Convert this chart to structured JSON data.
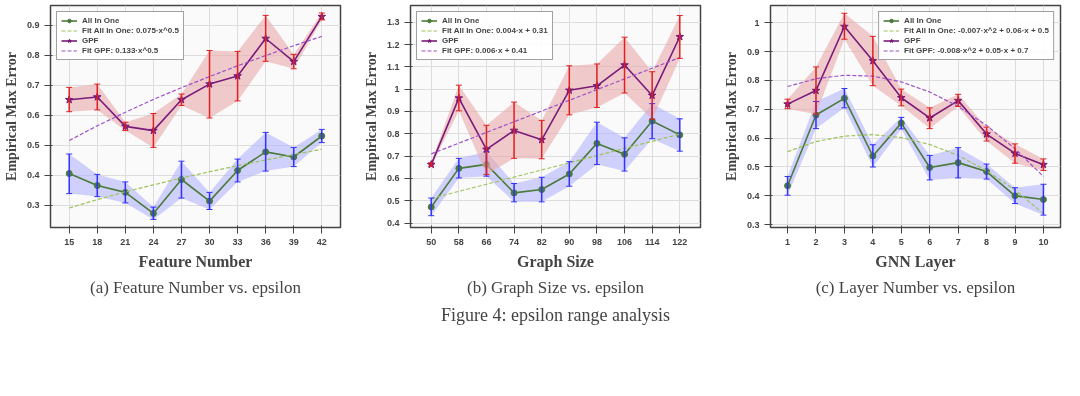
{
  "chart_data": [
    {
      "type": "line",
      "xlabel": "Feature Number",
      "ylabel": "Empirical Max Error",
      "x": [
        15,
        18,
        21,
        24,
        27,
        30,
        33,
        36,
        39,
        42
      ],
      "xlim": [
        13,
        44
      ],
      "xticks": [
        15,
        18,
        21,
        24,
        27,
        30,
        33,
        36,
        39,
        42
      ],
      "ylim": [
        0.225,
        0.965
      ],
      "yticks": [
        0.3,
        0.4,
        0.5,
        0.6,
        0.7,
        0.8,
        0.9
      ],
      "grid": true,
      "legend": "top left",
      "series": [
        {
          "name": "All In One",
          "color": "#4a7a3a",
          "marker": "circle",
          "line_style": "solid",
          "values": [
            0.405,
            0.365,
            0.342,
            0.272,
            0.385,
            0.313,
            0.415,
            0.477,
            0.46,
            0.53
          ],
          "errors": [
            [
              0.338,
              0.47
            ],
            [
              0.328,
              0.402
            ],
            [
              0.307,
              0.377
            ],
            [
              0.252,
              0.293
            ],
            [
              0.323,
              0.446
            ],
            [
              0.285,
              0.342
            ],
            [
              0.377,
              0.453
            ],
            [
              0.413,
              0.542
            ],
            [
              0.428,
              0.492
            ],
            [
              0.508,
              0.552
            ]
          ],
          "lower": [
            0.338,
            0.328,
            0.307,
            0.252,
            0.323,
            0.285,
            0.377,
            0.413,
            0.428,
            0.508
          ],
          "upper": [
            0.47,
            0.402,
            0.377,
            0.293,
            0.446,
            0.342,
            0.453,
            0.542,
            0.492,
            0.552
          ]
        },
        {
          "name": "Fit All In One: 0.075·x^0.5",
          "color": "#9cc45a",
          "marker": "none",
          "line_style": "dashed",
          "values": [
            0.29,
            0.318,
            0.344,
            0.367,
            0.39,
            0.411,
            0.431,
            0.45,
            0.468,
            0.486
          ]
        },
        {
          "name": "GPF",
          "color": "#7a1a7a",
          "marker": "star",
          "line_style": "solid",
          "values": [
            0.651,
            0.66,
            0.562,
            0.548,
            0.651,
            0.703,
            0.73,
            0.855,
            0.778,
            0.928
          ],
          "errors": [
            [
              0.611,
              0.692
            ],
            [
              0.617,
              0.703
            ],
            [
              0.548,
              0.576
            ],
            [
              0.492,
              0.605
            ],
            [
              0.632,
              0.67
            ],
            [
              0.59,
              0.815
            ],
            [
              0.647,
              0.812
            ],
            [
              0.779,
              0.932
            ],
            [
              0.754,
              0.802
            ],
            [
              0.917,
              0.94
            ]
          ],
          "lower": [
            0.611,
            0.617,
            0.548,
            0.492,
            0.632,
            0.59,
            0.647,
            0.779,
            0.754,
            0.917
          ],
          "upper": [
            0.692,
            0.703,
            0.576,
            0.605,
            0.67,
            0.815,
            0.812,
            0.932,
            0.802,
            0.94
          ]
        },
        {
          "name": "Fit GPF: 0.133·x^0.5",
          "color": "#a050c8",
          "marker": "none",
          "line_style": "dashed",
          "values": [
            0.515,
            0.564,
            0.609,
            0.652,
            0.691,
            0.728,
            0.764,
            0.798,
            0.831,
            0.862
          ]
        }
      ],
      "annotations": [
        "(a) Feature Number vs. epsilon"
      ]
    },
    {
      "type": "line",
      "xlabel": "Graph Size",
      "ylabel": "Empirical Max Error",
      "x": [
        50,
        58,
        66,
        74,
        82,
        90,
        98,
        106,
        114,
        122
      ],
      "xlim": [
        44,
        128
      ],
      "xticks": [
        50,
        58,
        66,
        74,
        82,
        90,
        98,
        106,
        114,
        122
      ],
      "ylim": [
        0.38,
        1.375
      ],
      "yticks": [
        0.4,
        0.5,
        0.6,
        0.7,
        0.8,
        0.9,
        1,
        1.1,
        1.2,
        1.3
      ],
      "grid": true,
      "legend": "top left",
      "series": [
        {
          "name": "All In One",
          "color": "#4a7a3a",
          "marker": "circle",
          "line_style": "solid",
          "values": [
            0.472,
            0.645,
            0.663,
            0.535,
            0.55,
            0.62,
            0.757,
            0.708,
            0.857,
            0.795
          ],
          "errors": [
            [
              0.433,
              0.512
            ],
            [
              0.602,
              0.69
            ],
            [
              0.61,
              0.72
            ],
            [
              0.495,
              0.577
            ],
            [
              0.495,
              0.605
            ],
            [
              0.565,
              0.675
            ],
            [
              0.662,
              0.852
            ],
            [
              0.633,
              0.782
            ],
            [
              0.778,
              0.935
            ],
            [
              0.722,
              0.867
            ]
          ],
          "lower": [
            0.433,
            0.602,
            0.61,
            0.495,
            0.495,
            0.565,
            0.662,
            0.633,
            0.778,
            0.722
          ],
          "upper": [
            0.512,
            0.69,
            0.72,
            0.577,
            0.605,
            0.675,
            0.852,
            0.782,
            0.935,
            0.867
          ]
        },
        {
          "name": "Fit All In One: 0.004·x + 0.31",
          "color": "#9cc45a",
          "marker": "none",
          "line_style": "dashed",
          "values": [
            0.51,
            0.542,
            0.574,
            0.606,
            0.638,
            0.67,
            0.702,
            0.734,
            0.766,
            0.798
          ]
        },
        {
          "name": "GPF",
          "color": "#7a1a7a",
          "marker": "star",
          "line_style": "solid",
          "values": [
            0.662,
            0.96,
            0.73,
            0.815,
            0.773,
            0.995,
            1.015,
            1.108,
            0.972,
            1.235
          ],
          "errors": [
            [
              0.655,
              0.67
            ],
            [
              0.903,
              1.018
            ],
            [
              0.618,
              0.838
            ],
            [
              0.69,
              0.942
            ],
            [
              0.688,
              0.86
            ],
            [
              0.885,
              1.105
            ],
            [
              0.918,
              1.113
            ],
            [
              0.983,
              1.233
            ],
            [
              0.865,
              1.078
            ],
            [
              1.138,
              1.33
            ]
          ],
          "lower": [
            0.655,
            0.903,
            0.618,
            0.69,
            0.688,
            0.885,
            0.918,
            0.983,
            0.865,
            1.138
          ],
          "upper": [
            0.67,
            1.018,
            0.838,
            0.942,
            0.86,
            1.105,
            1.113,
            1.233,
            1.078,
            1.33
          ]
        },
        {
          "name": "Fit GPF: 0.006·x + 0.41",
          "color": "#a050c8",
          "marker": "none",
          "line_style": "dashed",
          "values": [
            0.71,
            0.758,
            0.806,
            0.854,
            0.902,
            0.95,
            0.998,
            1.046,
            1.094,
            1.142
          ]
        }
      ],
      "annotations": [
        "(b) Graph Size vs. epsilon",
        "Figure 4: epsilon range analysis"
      ]
    },
    {
      "type": "line",
      "xlabel": "GNN Layer",
      "ylabel": "Empirical Max Error",
      "x": [
        1,
        2,
        3,
        4,
        5,
        6,
        7,
        8,
        9,
        10
      ],
      "xlim": [
        0.4,
        10.6
      ],
      "xticks": [
        1,
        2,
        3,
        4,
        5,
        6,
        7,
        8,
        9,
        10
      ],
      "ylim": [
        0.29,
        1.06
      ],
      "yticks": [
        0.3,
        0.4,
        0.5,
        0.6,
        0.7,
        0.8,
        0.9,
        1
      ],
      "grid": true,
      "legend": "top right",
      "series": [
        {
          "name": "All In One",
          "color": "#4a7a3a",
          "marker": "circle",
          "line_style": "solid",
          "values": [
            0.435,
            0.68,
            0.738,
            0.538,
            0.652,
            0.498,
            0.515,
            0.484,
            0.4,
            0.387
          ],
          "errors": [
            [
              0.402,
              0.467
            ],
            [
              0.633,
              0.727
            ],
            [
              0.705,
              0.772
            ],
            [
              0.5,
              0.577
            ],
            [
              0.632,
              0.672
            ],
            [
              0.455,
              0.54
            ],
            [
              0.462,
              0.567
            ],
            [
              0.458,
              0.51
            ],
            [
              0.373,
              0.428
            ],
            [
              0.333,
              0.44
            ]
          ],
          "lower": [
            0.402,
            0.633,
            0.705,
            0.5,
            0.632,
            0.455,
            0.462,
            0.458,
            0.373,
            0.333
          ],
          "upper": [
            0.467,
            0.727,
            0.772,
            0.577,
            0.672,
            0.54,
            0.567,
            0.51,
            0.428,
            0.44
          ]
        },
        {
          "name": "Fit All In One: -0.007·x^2 + 0.06·x + 0.5",
          "color": "#9cc45a",
          "marker": "none",
          "line_style": "dashed",
          "values": [
            0.553,
            0.588,
            0.607,
            0.612,
            0.602,
            0.578,
            0.54,
            0.487,
            0.42,
            0.338
          ]
        },
        {
          "name": "GPF",
          "color": "#7a1a7a",
          "marker": "star",
          "line_style": "solid",
          "values": [
            0.718,
            0.765,
            0.987,
            0.868,
            0.74,
            0.67,
            0.73,
            0.614,
            0.547,
            0.508
          ],
          "errors": [
            [
              0.702,
              0.735
            ],
            [
              0.683,
              0.847
            ],
            [
              0.943,
              1.033
            ],
            [
              0.782,
              0.953
            ],
            [
              0.712,
              0.77
            ],
            [
              0.633,
              0.705
            ],
            [
              0.71,
              0.752
            ],
            [
              0.59,
              0.638
            ],
            [
              0.513,
              0.58
            ],
            [
              0.488,
              0.528
            ]
          ],
          "lower": [
            0.702,
            0.683,
            0.943,
            0.782,
            0.712,
            0.633,
            0.71,
            0.59,
            0.513,
            0.488
          ],
          "upper": [
            0.735,
            0.847,
            1.033,
            0.953,
            0.77,
            0.705,
            0.752,
            0.638,
            0.58,
            0.528
          ]
        },
        {
          "name": "Fit GPF: -0.008·x^2 + 0.05·x + 0.7",
          "color": "#a050c8",
          "marker": "none",
          "line_style": "dashed",
          "values": [
            0.779,
            0.806,
            0.818,
            0.815,
            0.795,
            0.76,
            0.71,
            0.644,
            0.563,
            0.467
          ]
        }
      ],
      "annotations": [
        "(c) Layer Number vs. epsilon"
      ]
    }
  ]
}
